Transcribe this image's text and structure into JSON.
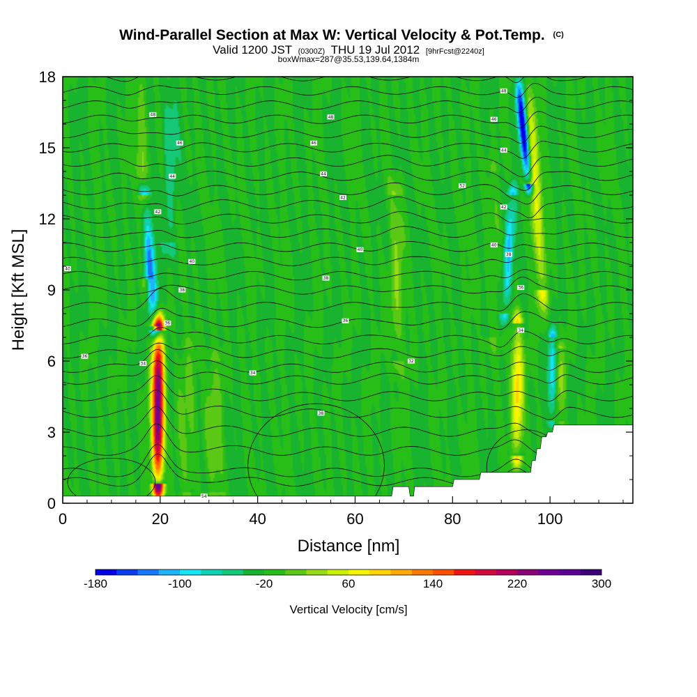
{
  "chart_data": {
    "type": "heatmap",
    "title": "Wind-Parallel Section at Max W: Vertical Velocity & Pot.Temp.",
    "title_mark": "(C)",
    "subtitle": {
      "prefix": "Valid 1200 JST",
      "utc": "(0300Z)",
      "date": "THU 19 Jul 2012",
      "forecast": "[9hrFcst@2240z]"
    },
    "line3": "boxWmax=287@35.53,139.64,1384m",
    "xlabel": "Distance [nm]",
    "ylabel": "Height [Kft MSL]",
    "xlim": [
      0,
      117
    ],
    "ylim": [
      0,
      18
    ],
    "x_ticks": [
      "0",
      "20",
      "40",
      "60",
      "80",
      "100"
    ],
    "x_tick_values": [
      0,
      20,
      40,
      60,
      80,
      100
    ],
    "y_ticks": [
      "0",
      "3",
      "6",
      "9",
      "12",
      "15",
      "18"
    ],
    "y_tick_values": [
      0,
      3,
      6,
      9,
      12,
      15,
      18
    ],
    "colorbar": {
      "label": "Vertical Velocity [cm/s]",
      "min": -180,
      "max": 300,
      "step": 20,
      "tick_labels": [
        "-180",
        "-100",
        "-20",
        "60",
        "140",
        "220",
        "300"
      ],
      "tick_values": [
        -180,
        -100,
        -20,
        60,
        140,
        220,
        300
      ],
      "colors": [
        "#0000e6",
        "#0a3cf0",
        "#1478ff",
        "#1eb4ff",
        "#14e6f5",
        "#0fd2b4",
        "#14c878",
        "#18b430",
        "#28be18",
        "#5ac814",
        "#96dc14",
        "#c8f000",
        "#f5f500",
        "#ffd200",
        "#ffaa00",
        "#ff7800",
        "#ff5000",
        "#f01414",
        "#d20a3c",
        "#b4005a",
        "#8c0078",
        "#6e0096",
        "#5a0096",
        "#3c0078"
      ]
    },
    "background_value": -20,
    "features": [
      {
        "name": "updraft",
        "x": 19.6,
        "y_low": 0.8,
        "y_high": 7.3,
        "width": 1.2,
        "peak": 287
      },
      {
        "name": "updraft",
        "x": 93.3,
        "y_low": 2.0,
        "y_high": 7.6,
        "width": 1.2,
        "peak": 110
      },
      {
        "name": "updraft",
        "x": 96.8,
        "y_low": 9.0,
        "y_high": 18.0,
        "width": 1.4,
        "peak": 80,
        "slope": -0.35
      },
      {
        "name": "updraft",
        "x": 16.5,
        "y_low": 9.5,
        "y_high": 18.0,
        "width": 1.0,
        "peak": 55,
        "slope": -0.15
      },
      {
        "name": "updraft",
        "x": 68.5,
        "y_low": 6.0,
        "y_high": 13.0,
        "width": 1.5,
        "peak": 40
      },
      {
        "name": "updraft",
        "x": 26.0,
        "y_low": 0.5,
        "y_high": 6.5,
        "width": 2.0,
        "peak": 25
      },
      {
        "name": "updraft",
        "x": 88.0,
        "y_low": 7.0,
        "y_high": 14.0,
        "width": 1.4,
        "peak": 25
      },
      {
        "name": "updraft",
        "x": 31.0,
        "y_low": 0.5,
        "y_high": 6.0,
        "width": 2.0,
        "peak": 30
      },
      {
        "name": "updraft",
        "x": 102.0,
        "y_low": 3.5,
        "y_high": 6.5,
        "width": 1.2,
        "peak": 40
      },
      {
        "name": "downdraft",
        "x": 17.8,
        "y_low": 7.5,
        "y_high": 13.0,
        "width": 1.2,
        "peak": -120,
        "slope": -0.4
      },
      {
        "name": "downdraft",
        "x": 94.5,
        "y_low": 13.5,
        "y_high": 18.0,
        "width": 0.9,
        "peak": -180,
        "slope": -0.5
      },
      {
        "name": "downdraft",
        "x": 91.5,
        "y_low": 8.0,
        "y_high": 13.0,
        "width": 1.0,
        "peak": -90,
        "slope": 0.3
      },
      {
        "name": "downdraft",
        "x": 100.5,
        "y_low": 3.5,
        "y_high": 7.0,
        "width": 0.9,
        "peak": -80
      },
      {
        "name": "downdraft",
        "x": 22.0,
        "y_low": 11.0,
        "y_high": 18.0,
        "width": 1.5,
        "peak": -40
      }
    ],
    "terrain": {
      "x": [
        0,
        67.5,
        67.8,
        71.0,
        71.3,
        72.0,
        72.2,
        80.0,
        80.3,
        85.5,
        85.8,
        96.0,
        96.3,
        97.0,
        97.3,
        98.0,
        98.3,
        99.2,
        99.5,
        100.5,
        100.8,
        117
      ],
      "y": [
        0.3,
        0.3,
        0.7,
        0.7,
        0.3,
        0.3,
        0.7,
        0.7,
        1.0,
        1.0,
        1.3,
        1.3,
        1.8,
        1.8,
        2.3,
        2.3,
        2.8,
        2.8,
        3.0,
        3.0,
        3.3,
        3.3
      ]
    },
    "theta_contours": {
      "label_values": [
        "38",
        "40",
        "42",
        "44",
        "46",
        "48",
        "50",
        "52",
        "54"
      ],
      "levels": [
        0.9,
        1.3,
        2.2,
        3.0,
        3.8,
        4.5,
        5.2,
        5.7,
        6.3,
        6.9,
        7.6,
        8.3,
        9.0,
        9.6,
        10.2,
        10.8,
        11.4,
        12.0,
        12.6,
        13.2,
        13.8,
        14.4,
        15.0,
        15.6,
        16.2,
        16.8,
        17.4,
        18.0
      ],
      "labels": [
        {
          "text": "54",
          "x": 29,
          "y": 0.3
        },
        {
          "text": "38",
          "x": 53,
          "y": 3.8
        },
        {
          "text": "34",
          "x": 39,
          "y": 5.5
        },
        {
          "text": "34",
          "x": 16.5,
          "y": 5.9
        },
        {
          "text": "36",
          "x": 4.5,
          "y": 6.2
        },
        {
          "text": "36",
          "x": 21.5,
          "y": 7.6
        },
        {
          "text": "38",
          "x": 24.5,
          "y": 9.0
        },
        {
          "text": "40",
          "x": 26.5,
          "y": 10.2
        },
        {
          "text": "42",
          "x": 19.5,
          "y": 12.3
        },
        {
          "text": "44",
          "x": 22.5,
          "y": 13.8
        },
        {
          "text": "46",
          "x": 24.0,
          "y": 15.2
        },
        {
          "text": "48",
          "x": 18.5,
          "y": 16.4
        },
        {
          "text": "40",
          "x": 1.0,
          "y": 9.9
        },
        {
          "text": "36",
          "x": 58.0,
          "y": 7.7
        },
        {
          "text": "38",
          "x": 54.0,
          "y": 9.5
        },
        {
          "text": "40",
          "x": 61.0,
          "y": 10.7
        },
        {
          "text": "42",
          "x": 57.5,
          "y": 12.9
        },
        {
          "text": "44",
          "x": 53.5,
          "y": 13.9
        },
        {
          "text": "46",
          "x": 51.5,
          "y": 15.2
        },
        {
          "text": "48",
          "x": 55.0,
          "y": 16.3
        },
        {
          "text": "32",
          "x": 71.5,
          "y": 6.0
        },
        {
          "text": "34",
          "x": 94.0,
          "y": 7.3
        },
        {
          "text": "36",
          "x": 94.0,
          "y": 9.1
        },
        {
          "text": "38",
          "x": 91.5,
          "y": 10.5
        },
        {
          "text": "40",
          "x": 88.5,
          "y": 10.9
        },
        {
          "text": "42",
          "x": 90.5,
          "y": 12.5
        },
        {
          "text": "44",
          "x": 90.5,
          "y": 14.9
        },
        {
          "text": "46",
          "x": 88.5,
          "y": 16.2
        },
        {
          "text": "48",
          "x": 90.5,
          "y": 17.4
        },
        {
          "text": "52",
          "x": 82.0,
          "y": 13.4
        }
      ]
    }
  }
}
